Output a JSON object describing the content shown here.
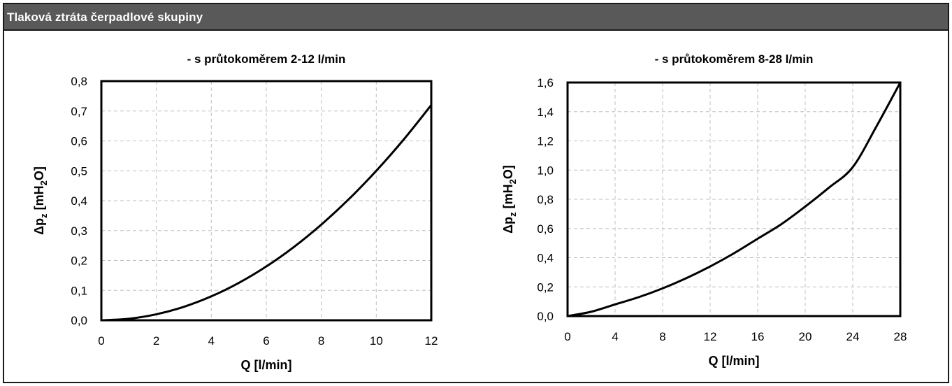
{
  "header": {
    "title": "Tlaková ztráta čerpadlové skupiny"
  },
  "colors": {
    "header_bg": "#595959",
    "curve": "#000000",
    "grid": "#bfbfbf"
  },
  "chart_data": [
    {
      "type": "line",
      "title": "- s průtokoměrem 2-12 l/min",
      "xlabel": "Q [l/min]",
      "ylabel": {
        "base": "Δp",
        "sub1": "z",
        "mid": " [mH",
        "sub2": "2",
        "end": "O]"
      },
      "xlim": [
        0,
        12
      ],
      "ylim": [
        0,
        0.8
      ],
      "xticks": [
        0,
        2,
        4,
        6,
        8,
        10,
        12
      ],
      "xtick_labels": [
        "0",
        "2",
        "4",
        "6",
        "8",
        "10",
        "12"
      ],
      "yticks": [
        0,
        0.1,
        0.2,
        0.3,
        0.4,
        0.5,
        0.6,
        0.7,
        0.8
      ],
      "ytick_labels": [
        "0,0",
        "0,1",
        "0,2",
        "0,3",
        "0,4",
        "0,5",
        "0,6",
        "0,7",
        "0,8"
      ],
      "grid": true,
      "series": [
        {
          "x": [
            0,
            1,
            2,
            3,
            4,
            5,
            6,
            7,
            8,
            9,
            10,
            11,
            12
          ],
          "y": [
            0,
            0.005,
            0.02,
            0.045,
            0.08,
            0.125,
            0.18,
            0.245,
            0.32,
            0.405,
            0.5,
            0.605,
            0.72
          ]
        }
      ]
    },
    {
      "type": "line",
      "title": "- s průtokoměrem 8-28 l/min",
      "xlabel": "Q [l/min]",
      "ylabel": {
        "base": "Δp",
        "sub1": "z",
        "mid": " [mH",
        "sub2": "2",
        "end": "O]"
      },
      "xlim": [
        0,
        28
      ],
      "ylim": [
        0,
        1.6
      ],
      "xticks": [
        0,
        4,
        8,
        12,
        16,
        20,
        24,
        28
      ],
      "xtick_labels": [
        "0",
        "4",
        "8",
        "12",
        "16",
        "20",
        "24",
        "28"
      ],
      "yticks": [
        0,
        0.2,
        0.4,
        0.6,
        0.8,
        1.0,
        1.2,
        1.4,
        1.6
      ],
      "ytick_labels": [
        "0,0",
        "0,2",
        "0,4",
        "0,6",
        "0,8",
        "1,0",
        "1,2",
        "1,4",
        "1,6"
      ],
      "grid": true,
      "series": [
        {
          "x": [
            0,
            2,
            4,
            6,
            8,
            10,
            12,
            14,
            16,
            18,
            20,
            22,
            24,
            26,
            28
          ],
          "y": [
            0,
            0.03,
            0.08,
            0.13,
            0.19,
            0.26,
            0.34,
            0.43,
            0.53,
            0.63,
            0.75,
            0.88,
            1.02,
            1.3,
            1.6
          ]
        }
      ]
    }
  ]
}
